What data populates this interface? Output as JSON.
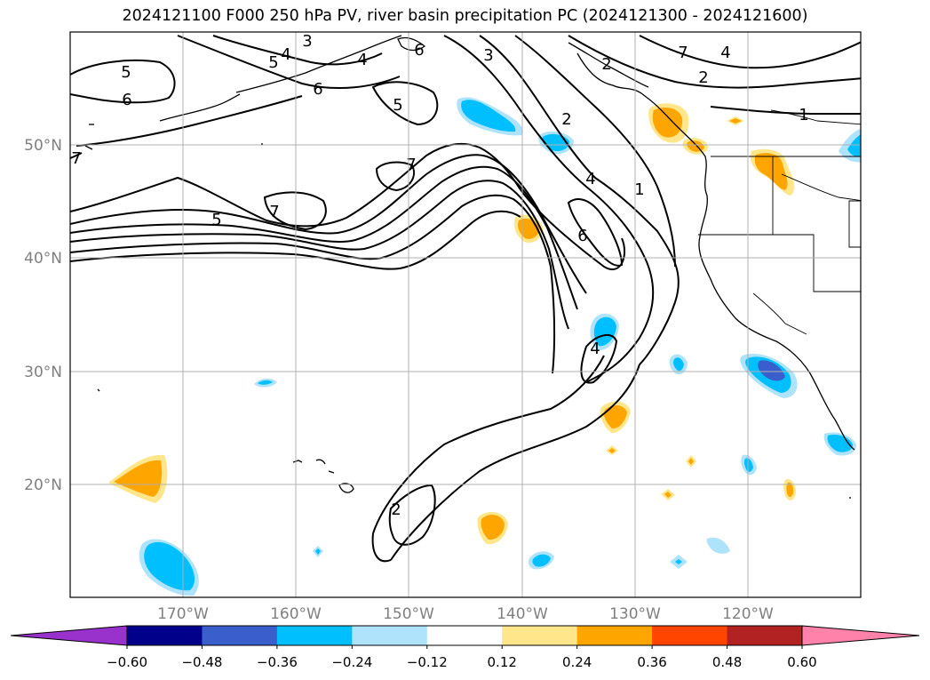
{
  "title": "2024121100 F000 250 hPa PV, river basin precipitation PC (2024121300 - 2024121600)",
  "map": {
    "lon_labels": [
      "170°W",
      "160°W",
      "150°W",
      "140°W",
      "130°W",
      "120°W"
    ],
    "lat_labels": [
      "50°N",
      "40°N",
      "30°N",
      "20°N"
    ],
    "tick_color": "#808080",
    "gridlines": true
  },
  "contour_labels": [
    "5",
    "6",
    "4",
    "3",
    "5",
    "6",
    "6",
    "3",
    "4",
    "2",
    "1",
    "5",
    "7",
    "7",
    "5",
    "7",
    "2",
    "4",
    "1",
    "6",
    "4",
    "2",
    "4",
    "2",
    "7"
  ],
  "colorbar": {
    "ticks": [
      "−0.60",
      "−0.48",
      "−0.36",
      "−0.24",
      "−0.12",
      "0.12",
      "0.24",
      "0.36",
      "0.48",
      "0.60"
    ],
    "colors": [
      "#9932cc",
      "#00008b",
      "#3a5fcd",
      "#00bfff",
      "#aee3fb",
      "#ffffff",
      "#ffe68a",
      "#ffa500",
      "#ff4500",
      "#b22222",
      "#ff82ab"
    ]
  }
}
